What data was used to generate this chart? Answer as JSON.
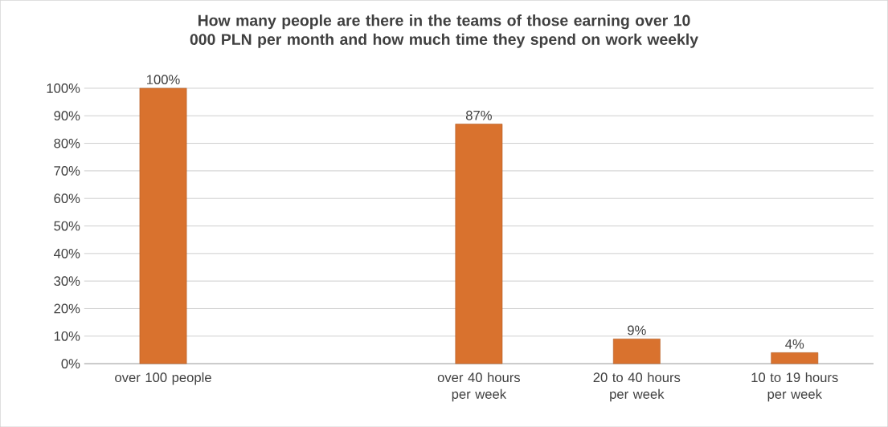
{
  "chart_data": {
    "type": "bar",
    "title": "How many people are there in the teams of those earning over 10 000 PLN per month and how much time they spend on work weekly",
    "categories": [
      "over 100 people",
      null,
      "over 40 hours per week",
      "20 to 40 hours per week",
      "10 to 19 hours per week"
    ],
    "values": [
      100,
      null,
      87,
      9,
      4
    ],
    "value_labels": [
      "100%",
      null,
      "87%",
      "9%",
      "4%"
    ],
    "color": "#d9722e",
    "ylim": [
      0,
      100
    ],
    "yticks": [
      {
        "value": 0,
        "label": "0%"
      },
      {
        "value": 10,
        "label": "10%"
      },
      {
        "value": 20,
        "label": "20%"
      },
      {
        "value": 30,
        "label": "30%"
      },
      {
        "value": 40,
        "label": "40%"
      },
      {
        "value": 50,
        "label": "50%"
      },
      {
        "value": 60,
        "label": "60%"
      },
      {
        "value": 70,
        "label": "70%"
      },
      {
        "value": 80,
        "label": "80%"
      },
      {
        "value": 90,
        "label": "90%"
      },
      {
        "value": 100,
        "label": "100%"
      }
    ],
    "grid": "y"
  }
}
